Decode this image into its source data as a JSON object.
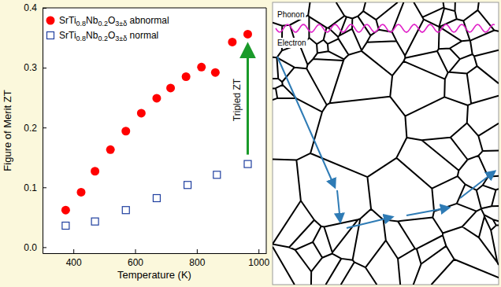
{
  "chart_data": {
    "type": "scatter",
    "xlabel": "Temperature (K)",
    "ylabel": "Figure of Merit ZT",
    "xlim": [
      300,
      1025
    ],
    "xticks": [
      400,
      600,
      800,
      1000
    ],
    "ylim": [
      -0.01,
      0.4
    ],
    "yticks": [
      {
        "value": 0,
        "label": "0.0"
      },
      {
        "value": 0.1,
        "label": "0.1"
      },
      {
        "value": 0.2,
        "label": "0.2"
      },
      {
        "value": 0.3,
        "label": "0.3"
      },
      {
        "value": 0.4,
        "label": "0.4"
      }
    ],
    "legend": "upper left",
    "series": [
      {
        "name": "SrTi0.8Nb0.2O3±δ abnormal",
        "color": "#ff0000",
        "marker": "circle",
        "x": [
          375,
          425,
          470,
          520,
          570,
          620,
          670,
          715,
          765,
          815,
          860,
          915,
          965
        ],
        "values": [
          0.062,
          0.092,
          0.127,
          0.163,
          0.194,
          0.224,
          0.249,
          0.266,
          0.285,
          0.301,
          0.292,
          0.343,
          0.356
        ]
      },
      {
        "name": "SrTi0.8Nb0.2O3±δ normal",
        "color": "#1f3f9f",
        "marker": "open-square",
        "x": [
          375,
          470,
          570,
          670,
          770,
          865,
          965
        ],
        "values": [
          0.036,
          0.043,
          0.062,
          0.082,
          0.104,
          0.121,
          0.139
        ]
      }
    ],
    "annotations": [
      {
        "text": "Tripled ZT"
      }
    ]
  },
  "diagram": {
    "labels": [
      "Phonon",
      "Electron"
    ]
  }
}
